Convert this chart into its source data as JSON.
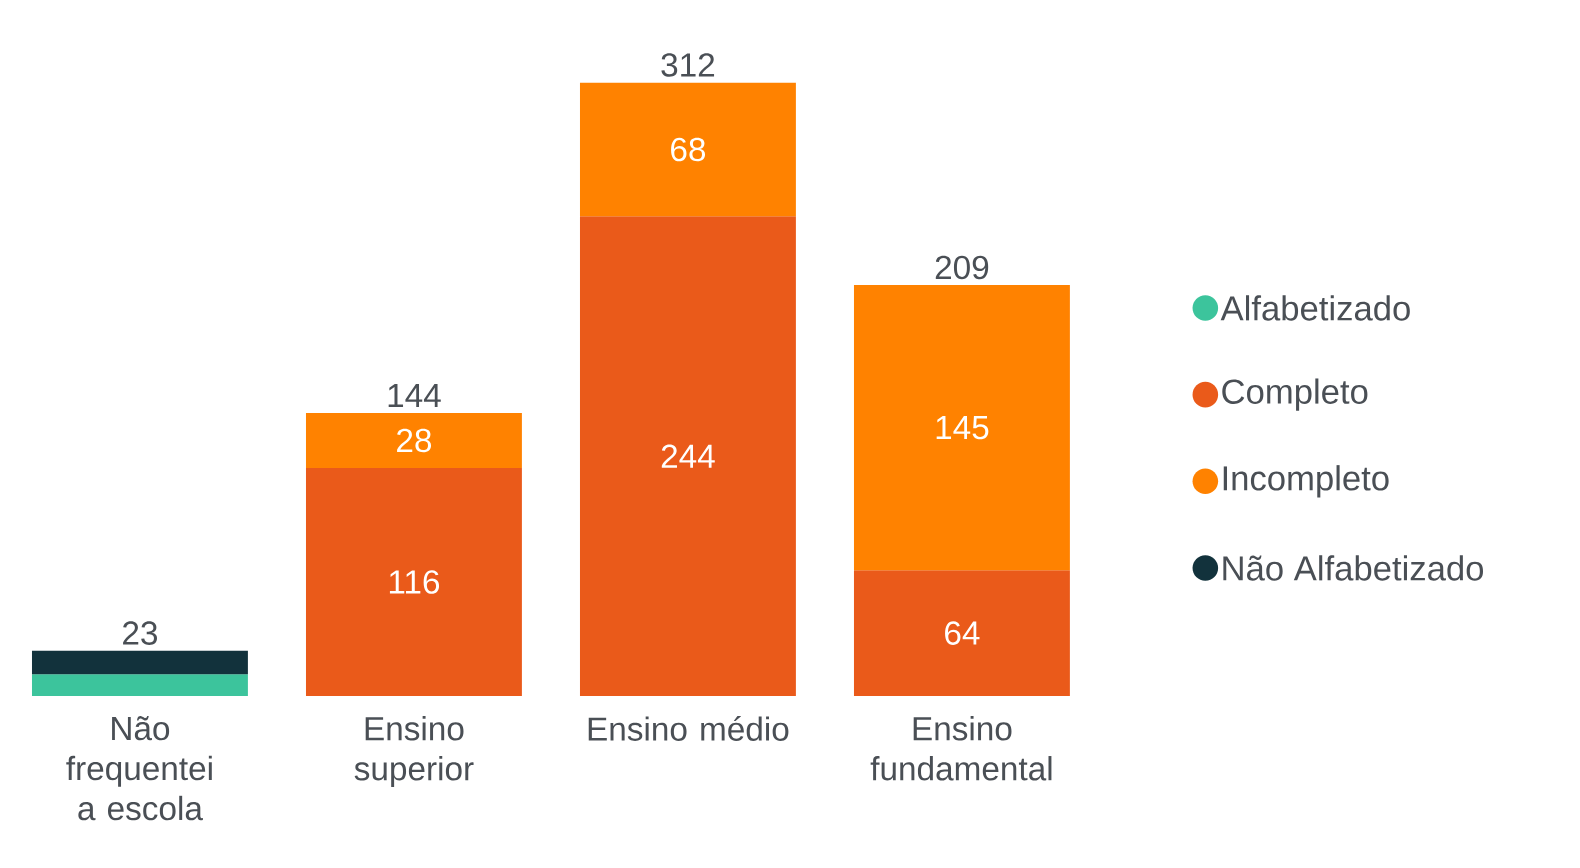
{
  "chart_data": {
    "type": "bar",
    "stacked": true,
    "legend": "right",
    "categories": [
      "Não frequentei a escola",
      "Ensino superior",
      "Ensino médio",
      "Ensino fundamental"
    ],
    "series": [
      {
        "name": "Alfabetizado",
        "color": "#3cc49c",
        "values": [
          11,
          null,
          null,
          null
        ]
      },
      {
        "name": "Completo",
        "color": "#ea5a1a",
        "values": [
          null,
          116,
          244,
          64
        ],
        "value_labels": [
          null,
          "116",
          "244",
          "64"
        ]
      },
      {
        "name": "Incompleto",
        "color": "#ff8200",
        "values": [
          null,
          28,
          68,
          145
        ],
        "value_labels": [
          null,
          "28",
          "68",
          "145"
        ]
      },
      {
        "name": "Não Alfabetizado",
        "color": "#12323c",
        "values": [
          12,
          null,
          null,
          null
        ]
      }
    ],
    "totals": [
      "23",
      "144",
      "312",
      "209"
    ]
  }
}
